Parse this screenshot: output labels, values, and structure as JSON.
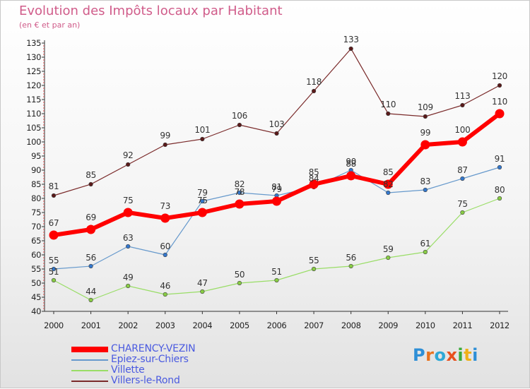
{
  "header": {
    "title": "Evolution des Impôts locaux par Habitant",
    "subtitle": "(en € et par an)"
  },
  "logo": {
    "text": "Proxiti",
    "letters": [
      "P",
      "r",
      "o",
      "x",
      "i",
      "t",
      "i"
    ]
  },
  "chart_data": {
    "type": "line",
    "title": "Evolution des Impôts locaux par Habitant",
    "subtitle": "(en € et par an)",
    "xlabel": "",
    "ylabel": "",
    "ylim": [
      40,
      135
    ],
    "ytick_step": 5,
    "grid": false,
    "legend_position": "bottom-left",
    "categories": [
      "2000",
      "2001",
      "2002",
      "2003",
      "2004",
      "2005",
      "2006",
      "2007",
      "2008",
      "2009",
      "2010",
      "2011",
      "2012"
    ],
    "series": [
      {
        "name": "CHARENCY-VEZIN",
        "color": "#ff0000",
        "values": [
          67,
          69,
          75,
          73,
          75,
          78,
          79,
          85,
          88,
          85,
          99,
          100,
          110
        ]
      },
      {
        "name": "Epiez-sur-Chiers",
        "color": "#6699cc",
        "values": [
          55,
          56,
          63,
          60,
          79,
          82,
          81,
          84,
          90,
          82,
          83,
          87,
          91
        ]
      },
      {
        "name": "Villette",
        "color": "#99dd66",
        "values": [
          51,
          44,
          49,
          46,
          47,
          50,
          51,
          55,
          56,
          59,
          61,
          75,
          80
        ]
      },
      {
        "name": "Villers-le-Rond",
        "color": "#7a2a2a",
        "values": [
          81,
          85,
          92,
          99,
          101,
          106,
          103,
          118,
          133,
          110,
          109,
          113,
          120
        ]
      }
    ]
  }
}
